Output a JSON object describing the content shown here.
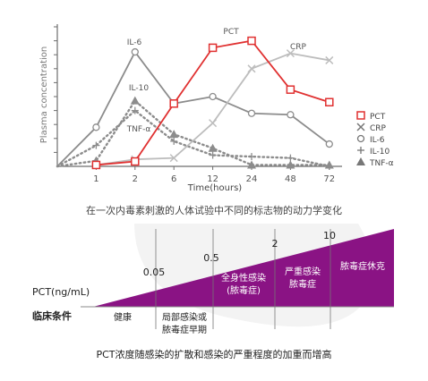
{
  "chart_data": [
    {
      "type": "line",
      "x_categories": [
        "1",
        "2",
        "6",
        "12",
        "24",
        "48",
        "72"
      ],
      "xlabel": "Time(hours)",
      "ylabel": "Plasma concentration",
      "ylim": [
        0,
        10
      ],
      "y_ticks": 10,
      "grid": false,
      "legend_position": "right",
      "series": [
        {
          "name": "IL-6",
          "label": "IL-6",
          "color": "#8c8c8c",
          "marker": "circle",
          "style": "solid",
          "x_start": 0,
          "values": [
            0,
            2.8,
            8.2,
            4.5,
            5.0,
            3.8,
            3.7,
            1.6
          ]
        },
        {
          "name": "IL-10",
          "label": "IL-10",
          "color": "#8c8c8c",
          "marker": "plus",
          "style": "dotted",
          "x_start": 0,
          "values": [
            0,
            1.5,
            4.0,
            1.8,
            0.8,
            0.7,
            0.6,
            0.0
          ]
        },
        {
          "name": "TNF-α",
          "label": "TNF-α",
          "color": "#8c8c8c",
          "marker": "triangle",
          "style": "dotted",
          "x_start": 0,
          "values": [
            0,
            0.4,
            4.7,
            2.3,
            1.3,
            0.1,
            0.1,
            0.1
          ]
        },
        {
          "name": "CRP",
          "label": "CRP",
          "color": "#bdbdbd",
          "marker": "x",
          "style": "solid",
          "x_start": 1,
          "values": [
            0.1,
            0.5,
            0.6,
            3.1,
            7.0,
            8.1,
            7.6
          ]
        },
        {
          "name": "PCT",
          "label": "PCT",
          "color": "#e03131",
          "marker": "square",
          "style": "solid",
          "x_start": 1,
          "values": [
            0.1,
            0.35,
            4.5,
            8.5,
            9.0,
            5.5,
            4.6
          ]
        }
      ],
      "legend": [
        "PCT",
        "CRP",
        "IL-6",
        "IL-10",
        "TNF-α"
      ],
      "annotations": [
        "IL-6",
        "PCT",
        "CRP",
        "IL-10",
        "TNF-α"
      ],
      "caption": "在一次内毒素刺激的人体试验中不同的标志物的动力学变化"
    },
    {
      "type": "area",
      "row_label": "PCT(ng/mL)",
      "category_label": "临床条件",
      "thresholds": [
        0.05,
        0.5,
        2,
        10
      ],
      "threshold_labels": [
        "0.05",
        "0.5",
        "2",
        "10"
      ],
      "conditions": [
        "健康",
        "局部感染或\n脓毒症早期",
        "全身性感染\n(脓毒症)",
        "严重感染\n脓毒症",
        "脓毒症休克"
      ],
      "fill_color": "#8a1384",
      "caption": "PCT浓度随感染的扩散和感染的严重程度的加重而增高"
    }
  ]
}
